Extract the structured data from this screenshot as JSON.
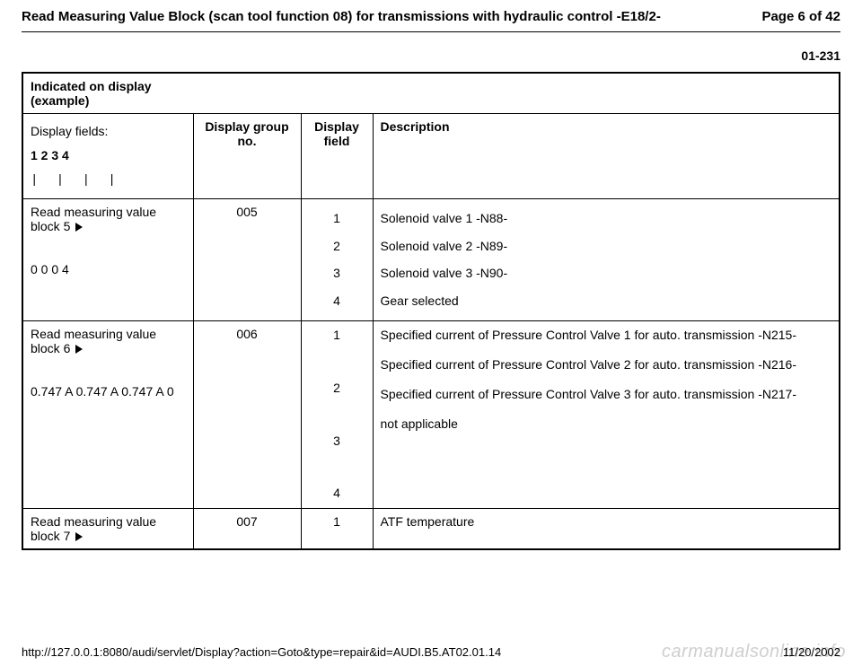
{
  "header": {
    "title": "Read Measuring Value Block (scan tool function 08) for transmissions with hydraulic control -E18/2-",
    "page_label": "Page 6 of 42",
    "page_code": "01-231"
  },
  "table": {
    "title": "Indicated on display\n(example)",
    "head": {
      "display_fields_label": "Display fields:",
      "display_fields_nums": "1 2 3 4",
      "display_fields_ticks": "|  |  |  |",
      "group_no": "Display group\nno.",
      "field": "Display\nfield",
      "description": "Description"
    },
    "rows": [
      {
        "block_label": "Read measuring value block 5",
        "block_value": "0 0 0 4",
        "group": "005",
        "fields": [
          "1",
          "2",
          "3",
          "4"
        ],
        "descs": [
          "Solenoid valve 1 -N88-",
          "Solenoid valve 2 -N89-",
          "Solenoid valve 3 -N90-",
          "Gear selected"
        ]
      },
      {
        "block_label": "Read measuring value block 6",
        "block_value": "0.747 A 0.747 A 0.747 A 0",
        "group": "006",
        "fields": [
          "1",
          "2",
          "3",
          "4"
        ],
        "descs": [
          "Specified current of Pressure Control Valve 1 for auto. transmission -N215-",
          "Specified current of Pressure Control Valve 2 for auto. transmission -N216-",
          "Specified current of Pressure Control Valve 3 for auto. transmission -N217-",
          "not applicable"
        ]
      },
      {
        "block_label": "Read measuring value block 7",
        "block_value": "",
        "group": "007",
        "fields": [
          "1"
        ],
        "descs": [
          "ATF temperature"
        ]
      }
    ]
  },
  "footer": {
    "url": "http://127.0.0.1:8080/audi/servlet/Display?action=Goto&type=repair&id=AUDI.B5.AT02.01.14",
    "date": "11/20/2002",
    "watermark": "carmanualsonline.info"
  }
}
